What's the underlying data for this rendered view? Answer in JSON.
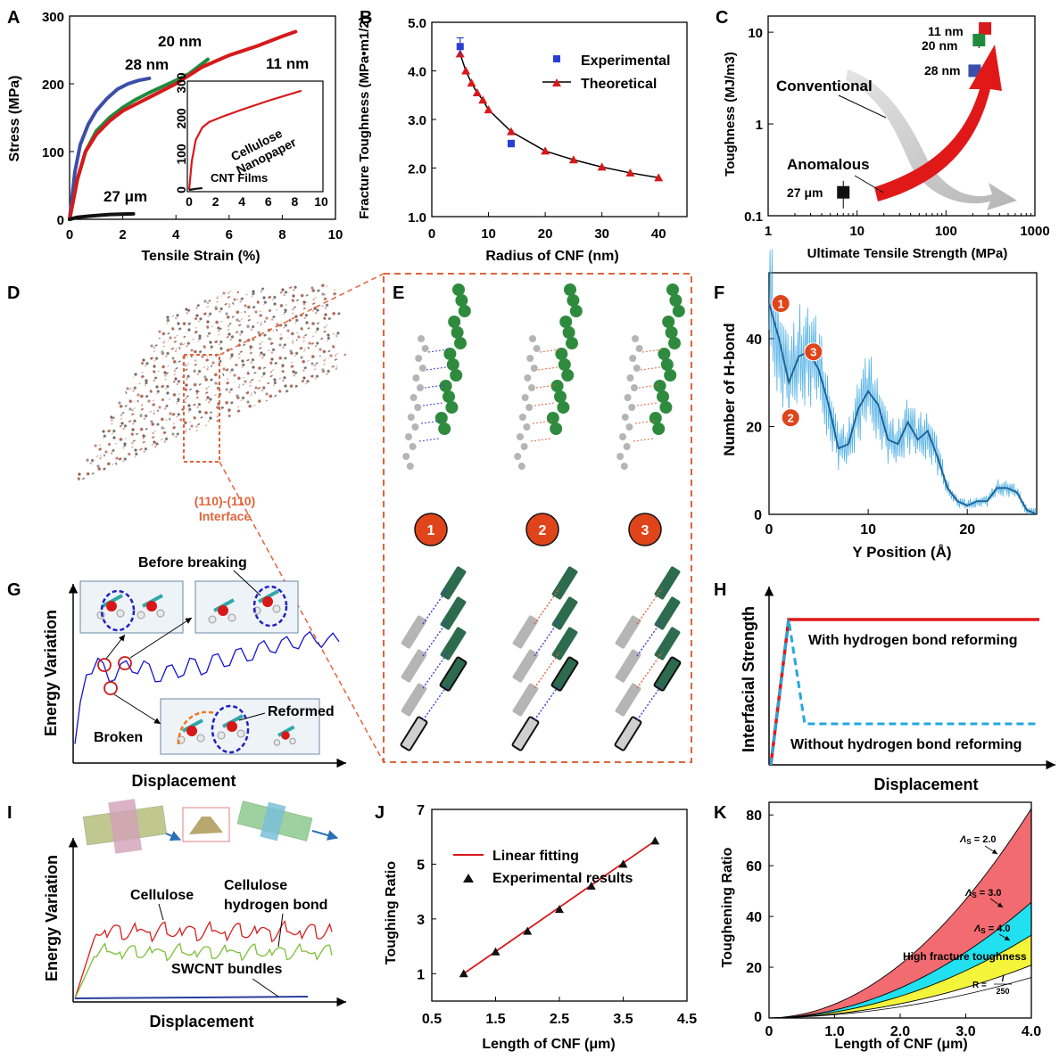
{
  "panels": {
    "A": "A",
    "B": "B",
    "C": "C",
    "D": "D",
    "E": "E",
    "F": "F",
    "G": "G",
    "H": "H",
    "I": "I",
    "J": "J",
    "K": "K"
  },
  "colors": {
    "blue": "#3b4fa8",
    "green": "#1f8a3c",
    "red": "#d7191c",
    "black": "#111111",
    "h_blue": "#1f8fd1",
    "cellulose_red": "#d62020",
    "swcnt_green": "#7cbf3a",
    "swcnt_blue": "#2b3f9c",
    "interface_orange": "#e0643a"
  },
  "chart_data": [
    {
      "panel": "A",
      "type": "line",
      "xlabel": "Tensile Strain (%)",
      "ylabel": "Stress (MPa)",
      "xlim": [
        0,
        10
      ],
      "ylim": [
        0,
        300
      ],
      "xticks": [
        "0",
        "2",
        "4",
        "6",
        "8",
        "10"
      ],
      "yticks": [
        "0",
        "100",
        "200",
        "300"
      ],
      "series": [
        {
          "name": "28 nm",
          "color": "#3b4fa8",
          "x": [
            0,
            0.2,
            0.4,
            0.7,
            1.0,
            1.4,
            1.8,
            2.2,
            2.6,
            3.0
          ],
          "y": [
            0,
            70,
            110,
            140,
            160,
            178,
            192,
            200,
            205,
            208
          ]
        },
        {
          "name": "20 nm",
          "color": "#1f8a3c",
          "x": [
            0,
            0.3,
            0.6,
            1.0,
            1.5,
            2.0,
            2.5,
            3.0,
            3.5,
            4.0,
            4.5,
            5.2
          ],
          "y": [
            0,
            60,
            100,
            130,
            150,
            165,
            177,
            187,
            196,
            205,
            215,
            236
          ]
        },
        {
          "name": "11 nm",
          "color": "#d7191c",
          "x": [
            0,
            0.3,
            0.6,
            1.0,
            1.5,
            2.0,
            3.0,
            4.0,
            5.0,
            6.0,
            7.0,
            8.0,
            8.5
          ],
          "y": [
            0,
            60,
            100,
            125,
            145,
            160,
            180,
            200,
            225,
            242,
            255,
            270,
            277
          ]
        },
        {
          "name": "27 μm",
          "color": "#111111",
          "x": [
            0,
            0.3,
            0.8,
            1.5,
            2.4
          ],
          "y": [
            0,
            3,
            5,
            7,
            8
          ]
        }
      ],
      "inset": {
        "xlim": [
          0,
          10
        ],
        "ylim": [
          0,
          300
        ],
        "xticks": [
          "0",
          "2",
          "4",
          "6",
          "8",
          "10"
        ],
        "yticks": [
          "0",
          "100",
          "200",
          "300"
        ],
        "labels": [
          "Cellulose",
          "Nanopaper",
          "CNT Films"
        ],
        "series": [
          {
            "color": "#d7191c",
            "x": [
              0,
              0.2,
              0.5,
              1.0,
              1.5,
              2.5,
              4.0,
              6.0,
              8.5
            ],
            "y": [
              0,
              80,
              140,
              175,
              190,
              205,
              225,
              250,
              278
            ]
          },
          {
            "color": "#111111",
            "x": [
              0,
              0.5,
              1.0
            ],
            "y": [
              0,
              3,
              5
            ]
          }
        ]
      }
    },
    {
      "panel": "B",
      "type": "line",
      "xlabel": "Radius of CNF (nm)",
      "ylabel": "Fracture Toughness (MPa•m1/2)",
      "xlim": [
        0,
        45
      ],
      "ylim": [
        1.0,
        5.0
      ],
      "xticks": [
        "0",
        "10",
        "20",
        "30",
        "40"
      ],
      "yticks": [
        "1.0",
        "2.0",
        "3.0",
        "4.0",
        "5.0"
      ],
      "series": [
        {
          "name": "Experimental",
          "color": "#2a3fd1",
          "x": [
            5,
            14
          ],
          "y": [
            4.5,
            2.5
          ],
          "yerr": [
            0.18,
            0.07
          ]
        },
        {
          "name": "Theoretical",
          "color": "#d7191c",
          "x": [
            5,
            6,
            7,
            8,
            9,
            10,
            14,
            20,
            25,
            30,
            35,
            40
          ],
          "y": [
            4.35,
            4.0,
            3.75,
            3.55,
            3.4,
            3.2,
            2.75,
            2.35,
            2.17,
            2.02,
            1.9,
            1.8
          ]
        }
      ]
    },
    {
      "panel": "C",
      "type": "scatter",
      "xlabel": "Ultimate Tensile Strength (MPa)",
      "ylabel": "Toughness (MJ/m3)",
      "xscale": "log",
      "yscale": "log",
      "xlim": [
        1,
        1000
      ],
      "ylim": [
        0.1,
        15
      ],
      "xticks": [
        "1",
        "10",
        "100",
        "1000"
      ],
      "yticks": [
        "0.1",
        "1",
        "10"
      ],
      "points": [
        {
          "label": "11 nm",
          "color": "#d7191c",
          "x": 275,
          "y": 11
        },
        {
          "label": "20 nm",
          "color": "#1f8a3c",
          "x": 235,
          "y": 8.2,
          "yerr": 1.5
        },
        {
          "label": "28 nm",
          "color": "#3b4fa8",
          "x": 210,
          "y": 3.8
        },
        {
          "label": "27 μm",
          "color": "#111111",
          "x": 7,
          "y": 0.18,
          "yerr": 0.06
        }
      ],
      "annotations": [
        "Conventional",
        "Anomalous"
      ]
    },
    {
      "panel": "F",
      "type": "line",
      "xlabel": "Y Position (Å)",
      "ylabel": "Number of H-bond",
      "xlim": [
        0,
        27
      ],
      "ylim": [
        0,
        55
      ],
      "xticks": [
        "0",
        "10",
        "20"
      ],
      "yticks": [
        "0",
        "20",
        "40"
      ],
      "series": [
        {
          "name": "",
          "color": "#1f8fd1",
          "x": [
            0,
            1,
            2,
            3,
            4,
            5,
            6,
            7,
            8,
            9,
            10,
            11,
            12,
            13,
            14,
            15,
            16,
            17,
            18,
            19,
            20,
            21,
            22,
            23,
            24,
            25,
            26,
            27
          ],
          "y": [
            48,
            40,
            30,
            36,
            37,
            33,
            25,
            15,
            16,
            24,
            28,
            25,
            17,
            16,
            21,
            17,
            19,
            13,
            6,
            3,
            2,
            3,
            3,
            6,
            6,
            5,
            1,
            0
          ]
        }
      ],
      "markers": [
        "1",
        "2",
        "3"
      ]
    },
    {
      "panel": "J",
      "type": "scatter",
      "xlabel": "Length of CNF (μm)",
      "ylabel": "Toughing Ratio",
      "xlim": [
        0.5,
        4.5
      ],
      "ylim": [
        0,
        7
      ],
      "xticks": [
        "0.5",
        "1.5",
        "2.5",
        "3.5",
        "4.5"
      ],
      "yticks": [
        "1",
        "3",
        "5",
        "7"
      ],
      "series": [
        {
          "name": "Linear fitting",
          "color": "#d7191c",
          "x": [
            1,
            4
          ],
          "y": [
            1.0,
            5.85
          ]
        },
        {
          "name": "Experimental results",
          "color": "#111111",
          "x": [
            1.0,
            1.5,
            2.0,
            2.5,
            3.0,
            3.5,
            4.0
          ],
          "y": [
            1.0,
            1.8,
            2.55,
            3.35,
            4.2,
            5.0,
            5.85
          ]
        }
      ]
    },
    {
      "panel": "K",
      "type": "area",
      "xlabel": "Length of CNF (μm)",
      "ylabel": "Toughening Ratio",
      "xlim": [
        0,
        4.0
      ],
      "ylim": [
        0,
        85
      ],
      "xticks": [
        "0",
        "1.0",
        "2.0",
        "3.0",
        "4.0"
      ],
      "yticks": [
        "20",
        "40",
        "60",
        "80"
      ],
      "series": [
        {
          "name": "Λs = 2.0",
          "color": "#f26b70",
          "coef": 5.06
        },
        {
          "name": "Λs = 3.0",
          "color": "#21e0ef",
          "coef": 2.75
        },
        {
          "name": "Λs = 4.0",
          "color": "#f4f43a",
          "coef": 1.94
        },
        {
          "name": "R = l / 250",
          "color": "#ffffff",
          "coef": 1.2
        }
      ],
      "annotations": [
        "High fracture toughness"
      ]
    }
  ],
  "schematic": {
    "D_interface": "(110)-(110)",
    "D_interface2": "Interface",
    "E_steps": [
      "1",
      "2",
      "3"
    ],
    "G": {
      "ylabel": "Energy Variation",
      "xlabel": "Displacement",
      "before": "Before breaking",
      "broken": "Broken",
      "reformed": "Reformed",
      "y": [
        10,
        60,
        72,
        55,
        68,
        62,
        70,
        55,
        66,
        58,
        72,
        60,
        74,
        66,
        78,
        70,
        82,
        77,
        85,
        80,
        88,
        84,
        86,
        84
      ]
    },
    "H": {
      "ylabel": "Interfacial Strength",
      "xlabel": "Displacement",
      "with": "With hydrogen bond reforming",
      "without": "Without hydrogen bond reforming"
    },
    "I": {
      "ylabel": "Energy Variation",
      "xlabel": "Displacement",
      "cellulose": "Cellulose",
      "cellulose_hb": "Cellulose",
      "cellulose_hb2": "hydrogen bond",
      "swcnt": "SWCNT bundles"
    },
    "K_labels": {
      "a2": "2.0",
      "a3": "3.0",
      "a4": "4.0",
      "Rnum": "l",
      "Rden": "250",
      "Rpre": "R ="
    }
  }
}
